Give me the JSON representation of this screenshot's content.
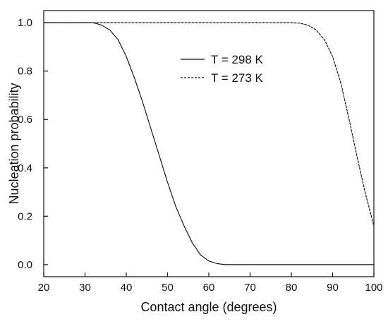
{
  "chart_data": {
    "type": "line",
    "title": "",
    "xlabel": "Contact angle (degrees)",
    "ylabel": "Nucleation probability",
    "xlim": [
      20,
      100
    ],
    "ylim": [
      -0.05,
      1.05
    ],
    "x_ticks": [
      20,
      30,
      40,
      50,
      60,
      70,
      80,
      90,
      100
    ],
    "x_tick_labels": [
      "20",
      "30",
      "40",
      "50",
      "60",
      "70",
      "80",
      "90",
      "100"
    ],
    "y_ticks": [
      0.0,
      0.2,
      0.4,
      0.6,
      0.8,
      1.0
    ],
    "y_tick_labels": [
      "0.0",
      "0.2",
      "0.4",
      "0.6",
      "0.8",
      "1.0"
    ],
    "grid": false,
    "legend": {
      "position": "top-center"
    },
    "series": [
      {
        "name": "T = 298 K",
        "line_style": "solid",
        "color": "#111111",
        "x": [
          20,
          30,
          32,
          34,
          36,
          38,
          40,
          42,
          44,
          46,
          48,
          50,
          52,
          54,
          56,
          58,
          60,
          62,
          64,
          70,
          80,
          90,
          100
        ],
        "y": [
          1.0,
          1.0,
          1.0,
          0.99,
          0.97,
          0.93,
          0.86,
          0.77,
          0.67,
          0.56,
          0.45,
          0.34,
          0.24,
          0.16,
          0.09,
          0.04,
          0.015,
          0.004,
          0.0,
          0.0,
          0.0,
          0.0,
          0.0
        ]
      },
      {
        "name": "T = 273 K",
        "line_style": "dashed",
        "color": "#111111",
        "x": [
          20,
          30,
          40,
          50,
          60,
          70,
          80,
          82,
          84,
          86,
          88,
          90,
          92,
          94,
          96,
          98,
          100
        ],
        "y": [
          1.0,
          1.0,
          1.0,
          1.0,
          1.0,
          1.0,
          1.0,
          0.998,
          0.99,
          0.97,
          0.93,
          0.86,
          0.75,
          0.6,
          0.44,
          0.29,
          0.16
        ]
      }
    ]
  }
}
